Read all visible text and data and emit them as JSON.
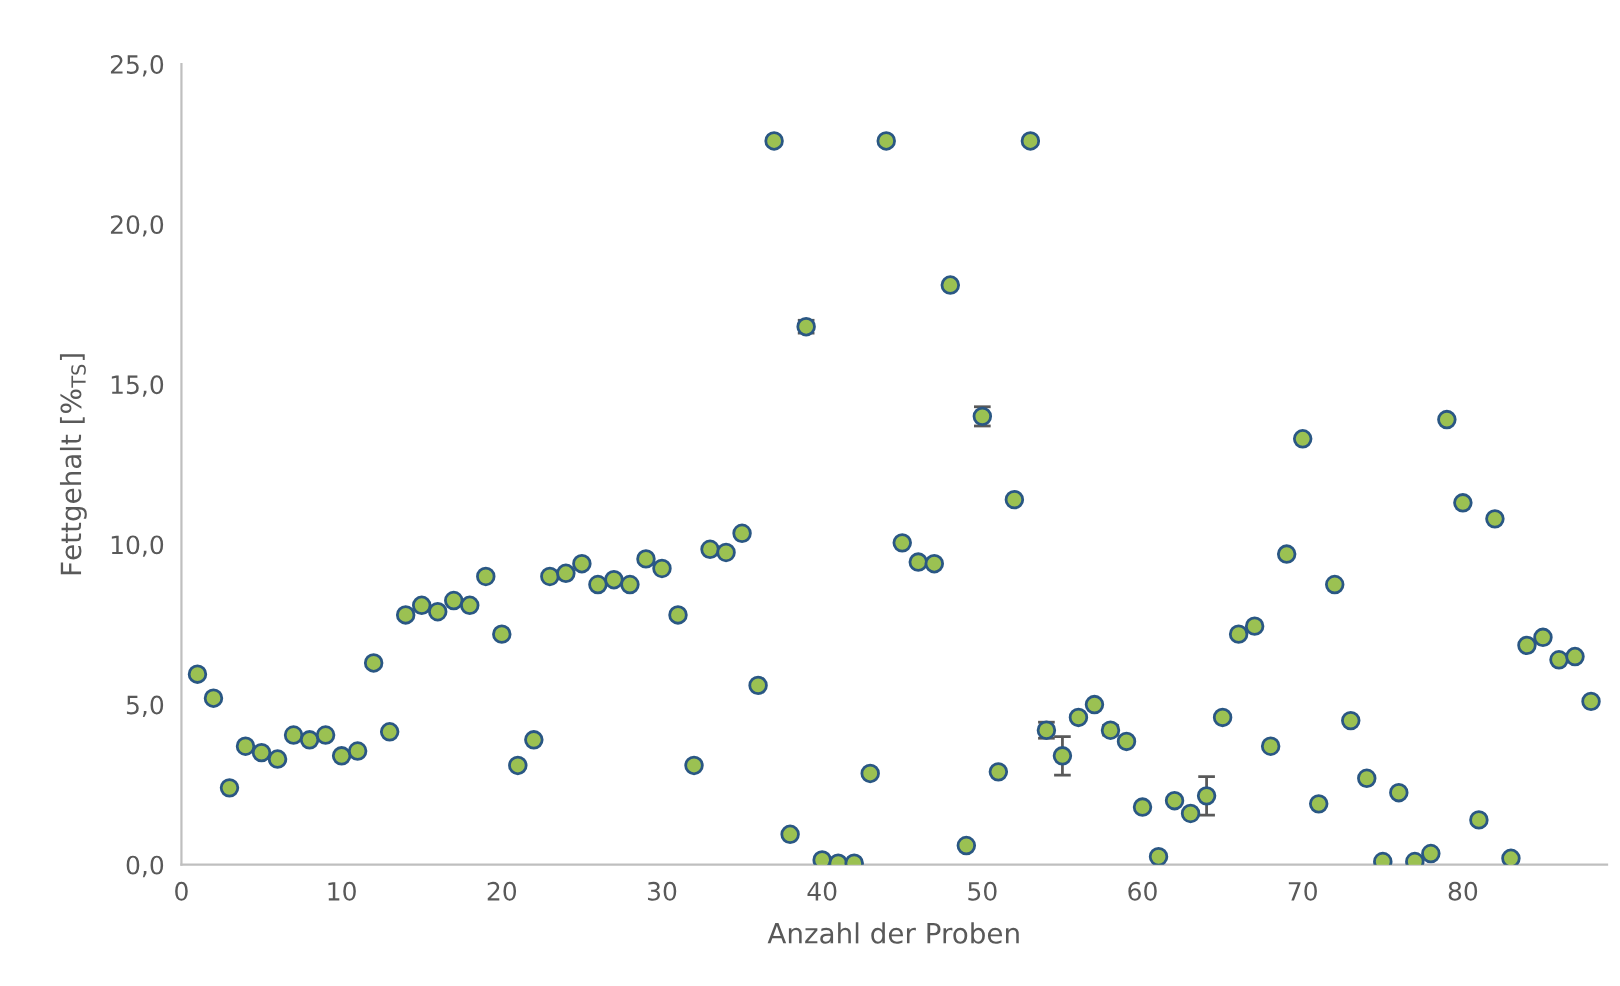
{
  "chart_data": {
    "type": "scatter",
    "xlabel": "Anzahl der Proben",
    "ylabel": "Fettgehalt [%$_{TS}$]",
    "xlim": [
      0,
      89
    ],
    "xticks": [
      0,
      10,
      20,
      30,
      40,
      50,
      60,
      70,
      80
    ],
    "ylim": [
      0,
      25
    ],
    "yticks": [
      {
        "value": 0,
        "label": "0,0"
      },
      {
        "value": 5,
        "label": "5,0"
      },
      {
        "value": 10,
        "label": "10,0"
      },
      {
        "value": 15,
        "label": "15,0"
      },
      {
        "value": 20,
        "label": "20,0"
      },
      {
        "value": 25,
        "label": "25,0"
      }
    ],
    "grid": false,
    "legend": false,
    "marker": "circle",
    "series": [
      {
        "color": "#9bc152",
        "x": [
          1,
          2,
          3,
          4,
          5,
          6,
          7,
          8,
          9,
          10,
          11,
          12,
          13,
          14,
          15,
          16,
          17,
          18,
          19,
          20,
          21,
          22,
          23,
          24,
          25,
          26,
          27,
          28,
          29,
          30,
          31,
          32,
          33,
          34,
          35,
          36,
          37,
          38,
          39,
          40,
          41,
          42,
          43,
          44,
          45,
          46,
          47,
          48,
          49,
          50,
          51,
          52,
          53,
          54,
          55,
          56,
          57,
          58,
          59,
          60,
          61,
          62,
          63,
          64,
          65,
          66,
          67,
          68,
          69,
          70,
          71,
          72,
          73,
          74,
          75,
          76,
          77,
          78,
          79,
          80,
          81,
          82,
          83,
          84,
          85,
          86,
          87,
          88
        ],
        "values": [
          5.95,
          5.2,
          2.4,
          3.7,
          3.5,
          3.3,
          4.05,
          3.9,
          4.05,
          3.4,
          3.55,
          6.3,
          4.15,
          7.8,
          8.1,
          7.9,
          8.25,
          8.1,
          9.0,
          7.2,
          3.1,
          3.9,
          9.0,
          9.1,
          9.4,
          8.75,
          8.9,
          8.75,
          9.55,
          9.25,
          7.8,
          3.1,
          9.85,
          9.75,
          10.35,
          5.6,
          22.6,
          0.95,
          16.8,
          0.15,
          0.05,
          0.05,
          2.85,
          22.6,
          10.05,
          9.45,
          9.4,
          18.1,
          0.6,
          14.0,
          2.9,
          11.4,
          22.6,
          4.2,
          3.4,
          4.6,
          5.0,
          4.2,
          3.85,
          1.8,
          0.25,
          2.0,
          1.6,
          2.15,
          4.6,
          7.2,
          7.45,
          3.7,
          9.7,
          13.3,
          1.9,
          8.75,
          4.5,
          2.7,
          0.1,
          2.25,
          0.1,
          0.35,
          13.9,
          11.3,
          1.4,
          10.8,
          0.2,
          6.85,
          7.1,
          6.4,
          6.5,
          5.1
        ],
        "errors": [
          null,
          null,
          null,
          null,
          null,
          null,
          null,
          null,
          null,
          null,
          null,
          null,
          null,
          null,
          null,
          null,
          null,
          null,
          null,
          null,
          null,
          null,
          null,
          null,
          null,
          null,
          null,
          null,
          null,
          null,
          null,
          null,
          null,
          null,
          null,
          null,
          null,
          null,
          0.2,
          null,
          null,
          null,
          null,
          null,
          null,
          null,
          null,
          null,
          null,
          0.3,
          null,
          null,
          null,
          0.25,
          0.6,
          null,
          null,
          0.15,
          null,
          null,
          null,
          null,
          null,
          0.6,
          null,
          null,
          null,
          null,
          null,
          null,
          null,
          null,
          null,
          null,
          null,
          null,
          null,
          null,
          null,
          null,
          null,
          null,
          null,
          null,
          null,
          null,
          null,
          null
        ]
      }
    ]
  }
}
